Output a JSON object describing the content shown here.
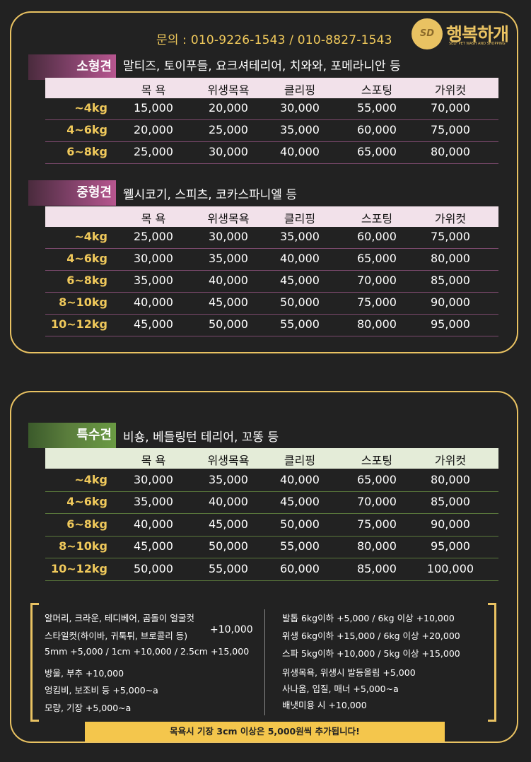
{
  "contact": {
    "text": "문의 : 010-9226-1543 / 010-8827-1543"
  },
  "logo": {
    "mark": "SD",
    "name": "행복하개",
    "subtitle": "SELF PET WASH AND SHOPPING"
  },
  "columns": [
    "목 욕",
    "위생목욕",
    "클리핑",
    "스포팅",
    "가위컷"
  ],
  "small": {
    "label": "소형견",
    "breeds": "말티즈, 토이푸들, 요크셔테리어, 치와와, 포메라니안 등",
    "rows": [
      {
        "w": "~4kg",
        "p": [
          "15,000",
          "20,000",
          "30,000",
          "55,000",
          "70,000"
        ]
      },
      {
        "w": "4~6kg",
        "p": [
          "20,000",
          "25,000",
          "35,000",
          "60,000",
          "75,000"
        ]
      },
      {
        "w": "6~8kg",
        "p": [
          "25,000",
          "30,000",
          "40,000",
          "65,000",
          "80,000"
        ]
      }
    ]
  },
  "medium": {
    "label": "중형견",
    "breeds": "웰시코기, 스피츠, 코카스파니엘 등",
    "rows": [
      {
        "w": "~4kg",
        "p": [
          "25,000",
          "30,000",
          "35,000",
          "60,000",
          "75,000"
        ]
      },
      {
        "w": "4~6kg",
        "p": [
          "30,000",
          "35,000",
          "40,000",
          "65,000",
          "80,000"
        ]
      },
      {
        "w": "6~8kg",
        "p": [
          "35,000",
          "40,000",
          "45,000",
          "70,000",
          "85,000"
        ]
      },
      {
        "w": "8~10kg",
        "p": [
          "40,000",
          "45,000",
          "50,000",
          "75,000",
          "90,000"
        ]
      },
      {
        "w": "10~12kg",
        "p": [
          "45,000",
          "50,000",
          "55,000",
          "80,000",
          "95,000"
        ]
      }
    ]
  },
  "special": {
    "label": "특수견",
    "breeds": "비숑, 베들링턴 테리어, 꼬똥 등",
    "rows": [
      {
        "w": "~4kg",
        "p": [
          "30,000",
          "35,000",
          "40,000",
          "65,000",
          "80,000"
        ]
      },
      {
        "w": "4~6kg",
        "p": [
          "35,000",
          "40,000",
          "45,000",
          "70,000",
          "85,000"
        ]
      },
      {
        "w": "6~8kg",
        "p": [
          "40,000",
          "45,000",
          "50,000",
          "75,000",
          "90,000"
        ]
      },
      {
        "w": "8~10kg",
        "p": [
          "45,000",
          "50,000",
          "55,000",
          "80,000",
          "95,000"
        ]
      },
      {
        "w": "10~12kg",
        "p": [
          "50,000",
          "55,000",
          "60,000",
          "85,000",
          "100,000"
        ]
      }
    ]
  },
  "notes_left": {
    "line1": "알머리, 크라운, 테디베어, 곰돌이 얼굴컷",
    "line2": "스타일컷(하이바, 귀툭튀, 브로콜리 등)",
    "price_big": "+10,000",
    "line3": "5mm +5,000 / 1cm +10,000 / 2.5cm +15,000",
    "line4": "방울, 부추 +10,000",
    "line5": "엉킴비, 보조비 등 +5,000~a",
    "line6": "모량, 기장  +5,000~a"
  },
  "notes_right": {
    "line1": "발톱  6kg이하   +5,000 / 6kg 이상  +10,000",
    "line2": "위생  6kg이하 +15,000 / 6kg 이상  +20,000",
    "line3": "스파  5kg이하 +10,000 / 5kg 이상  +15,000",
    "line4": "위생목욕, 위생시 발등올림 +5,000",
    "line5": "사나움, 입질, 매너 +5,000~a",
    "line6": "배냇미용 시 +10,000"
  },
  "footer": {
    "text": "목욕시 기장 3cm 이상은 5,000원씩 추가됩니다!"
  },
  "colors": {
    "gold": "#e9c262",
    "purple": "#b7568f",
    "green": "#6a9a43",
    "background": "#222222"
  }
}
